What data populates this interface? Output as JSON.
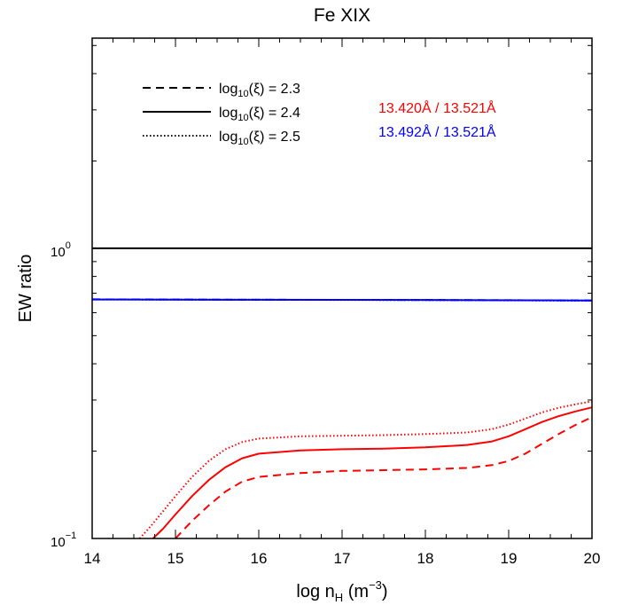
{
  "chart_data": {
    "type": "line",
    "title": "Fe XIX",
    "xlabel": {
      "base": "log n",
      "sub": "H",
      "mid": " (m",
      "sup": "−3",
      "end": ")"
    },
    "ylabel": "EW ratio",
    "xlim": [
      14,
      20
    ],
    "ylim": [
      0.1,
      5.3
    ],
    "y_scale": "log",
    "x_ticks": [
      "14",
      "15",
      "16",
      "17",
      "18",
      "19",
      "20"
    ],
    "y_ticks": [
      {
        "value": 1,
        "base": "10",
        "exp": "0"
      },
      {
        "value": 0.1,
        "base": "10",
        "exp": "−1"
      }
    ],
    "legend_styles": [
      {
        "style": "dashed",
        "pre": "log",
        "sub": "10",
        "post": "(ξ) = 2.3"
      },
      {
        "style": "solid",
        "pre": "log",
        "sub": "10",
        "post": "(ξ) = 2.4"
      },
      {
        "style": "dotted",
        "pre": "log",
        "sub": "10",
        "post": "(ξ) = 2.5"
      }
    ],
    "legend_ratios": [
      {
        "label": "13.420Å / 13.521Å",
        "color": "#ff0000"
      },
      {
        "label": "13.492Å / 13.521Å",
        "color": "#0000ff"
      }
    ],
    "series": [
      {
        "ratio": "13.420Å / 13.521Å",
        "xi": "2.3",
        "color": "#ff0000",
        "style": "dashed",
        "x": [
          15.0,
          15.2,
          15.4,
          15.6,
          15.8,
          16.0,
          16.5,
          17.0,
          17.5,
          18.0,
          18.5,
          18.8,
          19.0,
          19.2,
          19.4,
          19.6,
          19.8,
          20.0
        ],
        "y": [
          0.1,
          0.115,
          0.13,
          0.145,
          0.157,
          0.163,
          0.168,
          0.171,
          0.172,
          0.173,
          0.175,
          0.179,
          0.185,
          0.196,
          0.212,
          0.229,
          0.246,
          0.262
        ]
      },
      {
        "ratio": "13.420Å / 13.521Å",
        "xi": "2.4",
        "color": "#ff0000",
        "style": "solid",
        "x": [
          14.73,
          14.85,
          15.0,
          15.2,
          15.4,
          15.6,
          15.8,
          16.0,
          16.5,
          17.0,
          17.5,
          18.0,
          18.5,
          18.8,
          19.0,
          19.2,
          19.4,
          19.6,
          19.8,
          20.0
        ],
        "y": [
          0.1,
          0.108,
          0.121,
          0.14,
          0.159,
          0.176,
          0.189,
          0.196,
          0.201,
          0.203,
          0.204,
          0.206,
          0.21,
          0.216,
          0.225,
          0.238,
          0.252,
          0.264,
          0.274,
          0.283
        ]
      },
      {
        "ratio": "13.420Å / 13.521Å",
        "xi": "2.5",
        "color": "#ff0000",
        "style": "dotted",
        "x": [
          14.57,
          14.7,
          14.85,
          15.0,
          15.2,
          15.4,
          15.6,
          15.8,
          16.0,
          16.5,
          17.0,
          17.5,
          18.0,
          18.5,
          18.8,
          19.0,
          19.2,
          19.4,
          19.6,
          19.8,
          20.0
        ],
        "y": [
          0.1,
          0.11,
          0.124,
          0.14,
          0.163,
          0.185,
          0.203,
          0.215,
          0.221,
          0.225,
          0.226,
          0.227,
          0.229,
          0.232,
          0.238,
          0.247,
          0.259,
          0.272,
          0.282,
          0.29,
          0.297
        ]
      },
      {
        "ratio": "13.492Å / 13.521Å",
        "xi": "2.3",
        "color": "#0000ff",
        "style": "dashed",
        "x": [
          14,
          16,
          18,
          20
        ],
        "y": [
          0.667,
          0.665,
          0.664,
          0.661
        ]
      },
      {
        "ratio": "13.492Å / 13.521Å",
        "xi": "2.4",
        "color": "#0000ff",
        "style": "solid",
        "x": [
          14,
          16,
          18,
          20
        ],
        "y": [
          0.666,
          0.665,
          0.664,
          0.661
        ]
      },
      {
        "ratio": "13.492Å / 13.521Å",
        "xi": "2.5",
        "color": "#0000ff",
        "style": "dotted",
        "x": [
          14,
          16,
          18,
          20
        ],
        "y": [
          0.666,
          0.665,
          0.663,
          0.66
        ]
      },
      {
        "ratio": "reference",
        "xi": "",
        "color": "#000000",
        "style": "solid",
        "x": [
          14,
          20
        ],
        "y": [
          1.0,
          1.0
        ]
      }
    ]
  }
}
